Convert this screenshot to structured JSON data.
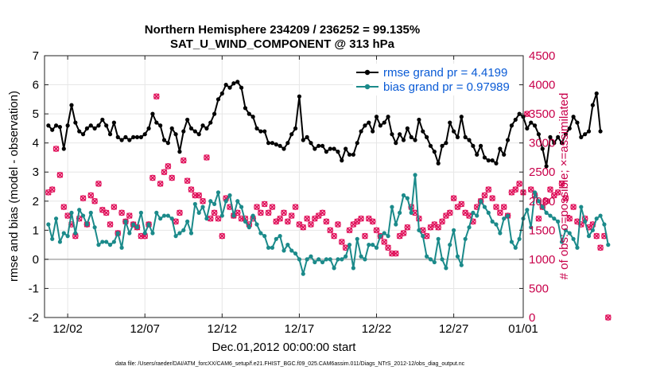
{
  "chart_data": {
    "type": "line",
    "title_line1": "Northern Hemisphere 234209 / 236252 = 99.135%",
    "title_line2": "SAT_U_WIND_COMPONENT @ 313 hPa",
    "xlabel": "Dec.01,2012 00:00:00 start",
    "ylabel_left": "rmse and bias (model - observation)",
    "ylabel_right": "# of obs: o=possible; ×=assimilated",
    "footnote": "data file: /Users/raeder/DAI/ATM_forcXX/CAM6_setup/f.e21.FHIST_BGC.f09_025.CAM6assim.011/Diags_NTrS_2012-12/obs_diag_output.nc",
    "xlim": [
      0.5,
      31.5
    ],
    "ylim_left": [
      -2,
      7
    ],
    "ylim_right": [
      0,
      4500
    ],
    "x_ticks": [
      2,
      7,
      12,
      17,
      22,
      27,
      32
    ],
    "x_tick_labels": [
      "12/02",
      "12/07",
      "12/12",
      "12/17",
      "12/22",
      "12/27",
      "01/01"
    ],
    "y_ticks_left": [
      -2,
      -1,
      0,
      1,
      2,
      3,
      4,
      5,
      6,
      7
    ],
    "y_ticks_right": [
      0,
      500,
      1000,
      1500,
      2000,
      2500,
      3000,
      3500,
      4000,
      4500
    ],
    "grid": true,
    "legend_position": "top-right",
    "x_start": 0.75,
    "x_step": 0.25,
    "series": [
      {
        "name": "rmse grand pr = 4.4199",
        "axis": "left",
        "color": "#000000",
        "marker": "dot",
        "values": [
          4.6,
          4.45,
          4.6,
          4.55,
          3.8,
          4.6,
          5.3,
          4.7,
          4.4,
          4.3,
          4.5,
          4.6,
          4.5,
          4.6,
          4.8,
          4.6,
          4.3,
          4.7,
          4.2,
          4.1,
          4.2,
          4.1,
          4.2,
          4.2,
          4.2,
          4.3,
          4.5,
          5.0,
          4.7,
          4.6,
          4.1,
          4.0,
          4.5,
          4.3,
          3.7,
          4.4,
          4.8,
          4.5,
          4.4,
          4.3,
          4.6,
          4.5,
          4.7,
          5.0,
          5.5,
          5.7,
          6.0,
          5.9,
          6.05,
          6.1,
          5.9,
          5.2,
          5.0,
          4.9,
          4.5,
          4.4,
          4.4,
          4.0,
          4.0,
          3.95,
          3.9,
          3.8,
          4.0,
          4.3,
          4.5,
          5.6,
          4.1,
          4.2,
          4.0,
          3.8,
          3.9,
          3.9,
          3.7,
          3.8,
          3.8,
          3.7,
          3.4,
          3.8,
          3.6,
          3.6,
          4.0,
          4.4,
          4.6,
          4.7,
          4.4,
          4.9,
          4.6,
          4.7,
          4.9,
          4.3,
          4.0,
          4.3,
          4.1,
          4.5,
          4.2,
          4.1,
          4.8,
          4.4,
          4.2,
          3.9,
          3.7,
          3.3,
          3.9,
          4.0,
          4.7,
          4.4,
          4.2,
          4.9,
          4.2,
          4.1,
          3.9,
          3.6,
          3.9,
          3.5,
          3.4,
          3.4,
          3.3,
          3.8,
          3.6,
          4.1,
          4.6,
          4.8,
          5.0,
          4.9,
          4.5,
          4.7,
          4.6,
          4.3,
          3.8,
          3.2,
          4.2,
          4.0,
          4.2,
          4.0,
          4.3,
          4.5,
          4.9,
          4.7,
          4.2,
          4.3,
          4.4,
          5.3,
          5.7,
          4.4
        ]
      },
      {
        "name": "bias grand pr = 0.97989",
        "axis": "left",
        "color": "#1b8a8a",
        "marker": "dot",
        "values": [
          1.2,
          0.7,
          1.4,
          0.6,
          0.9,
          0.8,
          1.6,
          0.9,
          1.7,
          1.5,
          1.2,
          1.6,
          1.1,
          0.5,
          0.6,
          0.6,
          0.5,
          0.6,
          0.9,
          0.4,
          1.3,
          0.9,
          1.2,
          1.1,
          1.6,
          0.9,
          1.2,
          0.9,
          1.6,
          1.4,
          1.5,
          1.5,
          1.4,
          0.8,
          0.9,
          1.0,
          1.3,
          0.9,
          1.9,
          1.6,
          1.8,
          1.4,
          2.0,
          1.9,
          2.3,
          1.5,
          2.0,
          2.2,
          1.5,
          2.0,
          1.8,
          1.3,
          1.1,
          1.5,
          1.2,
          0.9,
          0.8,
          0.4,
          0.4,
          0.7,
          0.8,
          0.3,
          0.5,
          0.3,
          0.2,
          0.0,
          -0.5,
          0.0,
          0.1,
          -0.1,
          0.0,
          -0.1,
          0.0,
          0.0,
          -0.3,
          0.0,
          0.0,
          0.1,
          0.5,
          -0.3,
          0.7,
          0.1,
          0.0,
          0.5,
          0.5,
          0.4,
          0.8,
          0.9,
          0.8,
          1.8,
          1.2,
          1.6,
          2.2,
          2.1,
          1.6,
          2.9,
          1.0,
          0.8,
          0.1,
          0.0,
          -0.1,
          0.7,
          0.0,
          -0.3,
          0.5,
          1.0,
          0.1,
          -0.2,
          0.7,
          1.1,
          1.6,
          1.5,
          2.0,
          1.8,
          1.6,
          1.3,
          1.2,
          0.9,
          1.4,
          1.5,
          0.6,
          0.4,
          0.7,
          1.4,
          1.7,
          1.1,
          2.3,
          2.0,
          1.8,
          1.6,
          1.5,
          1.4,
          1.3,
          0.6,
          1.0,
          0.9,
          0.7,
          0.4,
          1.8,
          1.3,
          0.8,
          1.0,
          1.4,
          1.5,
          1.2,
          0.5
        ]
      },
      {
        "name": "possible",
        "axis": "right",
        "color": "#e0105a",
        "marker": "circle",
        "values": [
          2150,
          2200,
          2900,
          2450,
          1900,
          1750,
          1600,
          1400,
          1700,
          2050,
          1600,
          2100,
          2000,
          2300,
          1850,
          1800,
          1600,
          1900,
          1450,
          1800,
          1650,
          1750,
          1600,
          1550,
          1400,
          1400,
          1600,
          2400,
          3800,
          2300,
          2500,
          2600,
          2400,
          1650,
          1800,
          2700,
          2350,
          2200,
          2100,
          2100,
          2000,
          2750,
          1700,
          1800,
          1700,
          1400,
          2050,
          1900,
          1750,
          1800,
          1700,
          1700,
          1600,
          1700,
          1900,
          1800,
          1950,
          1800,
          1900,
          1650,
          1700,
          1800,
          1650,
          1750,
          1900,
          1600,
          1550,
          1700,
          1600,
          1700,
          1750,
          1800,
          1650,
          1500,
          1400,
          1600,
          1300,
          1200,
          1500,
          1600,
          1650,
          1700,
          1400,
          1700,
          1650,
          1500,
          1400,
          1300,
          1200,
          1100,
          1100,
          1400,
          1450,
          1550,
          1900,
          1800,
          1700,
          1500,
          1400,
          1550,
          1600,
          1550,
          1650,
          1750,
          1800,
          2050,
          1900,
          1950,
          1800,
          1750,
          1650,
          1900,
          2000,
          2100,
          2200,
          2050,
          1900,
          1800,
          1900,
          1750,
          2150,
          2200,
          2300,
          2150,
          3500,
          2200,
          2100,
          1700,
          1900,
          2000,
          2200,
          2100,
          2150,
          2300,
          2050,
          1700,
          1900,
          1650,
          1600,
          1700,
          1550,
          1600,
          1400,
          1200,
          1400,
          0
        ]
      }
    ]
  }
}
